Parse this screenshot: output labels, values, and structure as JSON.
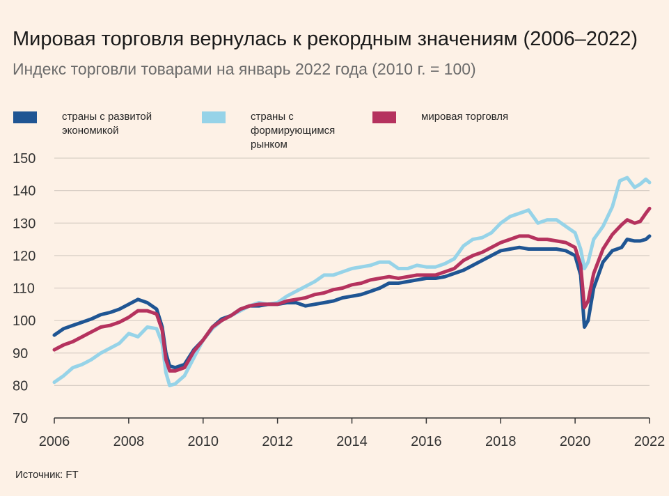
{
  "title": "Мировая торговля вернулась к рекордным значениям (2006–2022)",
  "subtitle": "Индекс торговли товарами на январь 2022 года  (2010 г. = 100)",
  "source": "Источник: FT",
  "legend": [
    {
      "label": "страны с развитой экономикой",
      "color": "#1F5593"
    },
    {
      "label": "страны с формирующимся рынком",
      "color": "#96D3E8"
    },
    {
      "label": "мировая торговля",
      "color": "#B5325E"
    }
  ],
  "chart_data": {
    "type": "line",
    "title": "Мировая торговля вернулась к рекордным значениям (2006–2022)",
    "subtitle": "Индекс торговли товарами на январь 2022 года  (2010 г. = 100)",
    "xlim": [
      2006,
      2022
    ],
    "ylim": [
      70,
      150
    ],
    "x_ticks": [
      "2006",
      "2008",
      "2010",
      "2012",
      "2014",
      "2016",
      "2018",
      "2020",
      "2022"
    ],
    "y_ticks": [
      "70",
      "80",
      "90",
      "100",
      "110",
      "120",
      "130",
      "140",
      "150"
    ],
    "grid": "horizontal",
    "legend_position": "top",
    "series": [
      {
        "name": "страны с развитой экономикой",
        "color": "#1F5593",
        "points": [
          [
            2006.0,
            95.5
          ],
          [
            2006.25,
            97.5
          ],
          [
            2006.5,
            98.5
          ],
          [
            2006.75,
            99.5
          ],
          [
            2007.0,
            100.5
          ],
          [
            2007.25,
            101.8
          ],
          [
            2007.5,
            102.5
          ],
          [
            2007.75,
            103.5
          ],
          [
            2008.0,
            105.0
          ],
          [
            2008.25,
            106.5
          ],
          [
            2008.5,
            105.5
          ],
          [
            2008.75,
            103.5
          ],
          [
            2008.9,
            98.0
          ],
          [
            2009.0,
            90.0
          ],
          [
            2009.1,
            86.0
          ],
          [
            2009.25,
            85.5
          ],
          [
            2009.5,
            86.5
          ],
          [
            2009.75,
            91.0
          ],
          [
            2010.0,
            94.0
          ],
          [
            2010.25,
            98.0
          ],
          [
            2010.5,
            100.5
          ],
          [
            2010.75,
            101.5
          ],
          [
            2011.0,
            103.5
          ],
          [
            2011.25,
            104.5
          ],
          [
            2011.5,
            104.5
          ],
          [
            2011.75,
            105.0
          ],
          [
            2012.0,
            105.0
          ],
          [
            2012.25,
            105.5
          ],
          [
            2012.5,
            105.5
          ],
          [
            2012.75,
            104.5
          ],
          [
            2013.0,
            105.0
          ],
          [
            2013.25,
            105.5
          ],
          [
            2013.5,
            106.0
          ],
          [
            2013.75,
            107.0
          ],
          [
            2014.0,
            107.5
          ],
          [
            2014.25,
            108.0
          ],
          [
            2014.5,
            109.0
          ],
          [
            2014.75,
            110.0
          ],
          [
            2015.0,
            111.5
          ],
          [
            2015.25,
            111.5
          ],
          [
            2015.5,
            112.0
          ],
          [
            2015.75,
            112.5
          ],
          [
            2016.0,
            113.0
          ],
          [
            2016.25,
            113.0
          ],
          [
            2016.5,
            113.5
          ],
          [
            2016.75,
            114.5
          ],
          [
            2017.0,
            115.5
          ],
          [
            2017.25,
            117.0
          ],
          [
            2017.5,
            118.5
          ],
          [
            2017.75,
            120.0
          ],
          [
            2018.0,
            121.5
          ],
          [
            2018.25,
            122.0
          ],
          [
            2018.5,
            122.5
          ],
          [
            2018.75,
            122.0
          ],
          [
            2019.0,
            122.0
          ],
          [
            2019.25,
            122.0
          ],
          [
            2019.5,
            122.0
          ],
          [
            2019.75,
            121.5
          ],
          [
            2020.0,
            120.0
          ],
          [
            2020.15,
            114.0
          ],
          [
            2020.25,
            98.0
          ],
          [
            2020.35,
            100.0
          ],
          [
            2020.5,
            110.0
          ],
          [
            2020.75,
            118.0
          ],
          [
            2021.0,
            121.5
          ],
          [
            2021.25,
            122.5
          ],
          [
            2021.4,
            125.0
          ],
          [
            2021.6,
            124.5
          ],
          [
            2021.75,
            124.5
          ],
          [
            2021.9,
            125.0
          ],
          [
            2022.0,
            126.0
          ]
        ]
      },
      {
        "name": "страны с формирующимся рынком",
        "color": "#96D3E8",
        "points": [
          [
            2006.0,
            81.0
          ],
          [
            2006.25,
            83.0
          ],
          [
            2006.5,
            85.5
          ],
          [
            2006.75,
            86.5
          ],
          [
            2007.0,
            88.0
          ],
          [
            2007.25,
            90.0
          ],
          [
            2007.5,
            91.5
          ],
          [
            2007.75,
            93.0
          ],
          [
            2008.0,
            96.0
          ],
          [
            2008.25,
            95.0
          ],
          [
            2008.5,
            98.0
          ],
          [
            2008.75,
            97.5
          ],
          [
            2008.9,
            93.0
          ],
          [
            2009.0,
            84.0
          ],
          [
            2009.1,
            80.0
          ],
          [
            2009.25,
            80.5
          ],
          [
            2009.5,
            83.0
          ],
          [
            2009.75,
            88.5
          ],
          [
            2010.0,
            94.0
          ],
          [
            2010.25,
            97.5
          ],
          [
            2010.5,
            100.0
          ],
          [
            2010.75,
            101.5
          ],
          [
            2011.0,
            103.0
          ],
          [
            2011.25,
            104.5
          ],
          [
            2011.5,
            105.5
          ],
          [
            2011.75,
            105.0
          ],
          [
            2012.0,
            105.5
          ],
          [
            2012.25,
            107.5
          ],
          [
            2012.5,
            109.0
          ],
          [
            2012.75,
            110.5
          ],
          [
            2013.0,
            112.0
          ],
          [
            2013.25,
            114.0
          ],
          [
            2013.5,
            114.0
          ],
          [
            2013.75,
            115.0
          ],
          [
            2014.0,
            116.0
          ],
          [
            2014.25,
            116.5
          ],
          [
            2014.5,
            117.0
          ],
          [
            2014.75,
            118.0
          ],
          [
            2015.0,
            118.0
          ],
          [
            2015.25,
            116.0
          ],
          [
            2015.5,
            116.0
          ],
          [
            2015.75,
            117.0
          ],
          [
            2016.0,
            116.5
          ],
          [
            2016.25,
            116.5
          ],
          [
            2016.5,
            117.5
          ],
          [
            2016.75,
            119.0
          ],
          [
            2017.0,
            123.0
          ],
          [
            2017.25,
            125.0
          ],
          [
            2017.5,
            125.5
          ],
          [
            2017.75,
            127.0
          ],
          [
            2018.0,
            130.0
          ],
          [
            2018.25,
            132.0
          ],
          [
            2018.5,
            133.0
          ],
          [
            2018.75,
            134.0
          ],
          [
            2019.0,
            130.0
          ],
          [
            2019.25,
            131.0
          ],
          [
            2019.5,
            131.0
          ],
          [
            2019.75,
            129.0
          ],
          [
            2020.0,
            127.0
          ],
          [
            2020.15,
            122.0
          ],
          [
            2020.25,
            116.0
          ],
          [
            2020.35,
            118.0
          ],
          [
            2020.5,
            125.0
          ],
          [
            2020.75,
            129.0
          ],
          [
            2021.0,
            135.0
          ],
          [
            2021.2,
            143.0
          ],
          [
            2021.4,
            144.0
          ],
          [
            2021.6,
            141.0
          ],
          [
            2021.75,
            142.0
          ],
          [
            2021.9,
            143.5
          ],
          [
            2022.0,
            142.5
          ]
        ]
      },
      {
        "name": "мировая торговля",
        "color": "#B5325E",
        "points": [
          [
            2006.0,
            91.0
          ],
          [
            2006.25,
            92.5
          ],
          [
            2006.5,
            93.5
          ],
          [
            2006.75,
            95.0
          ],
          [
            2007.0,
            96.5
          ],
          [
            2007.25,
            98.0
          ],
          [
            2007.5,
            98.5
          ],
          [
            2007.75,
            99.5
          ],
          [
            2008.0,
            101.0
          ],
          [
            2008.25,
            103.0
          ],
          [
            2008.5,
            103.0
          ],
          [
            2008.75,
            102.0
          ],
          [
            2008.9,
            97.0
          ],
          [
            2009.0,
            88.0
          ],
          [
            2009.1,
            84.5
          ],
          [
            2009.25,
            84.5
          ],
          [
            2009.5,
            85.5
          ],
          [
            2009.75,
            90.5
          ],
          [
            2010.0,
            94.0
          ],
          [
            2010.25,
            98.0
          ],
          [
            2010.5,
            100.0
          ],
          [
            2010.75,
            101.5
          ],
          [
            2011.0,
            103.5
          ],
          [
            2011.25,
            104.5
          ],
          [
            2011.5,
            105.0
          ],
          [
            2011.75,
            105.0
          ],
          [
            2012.0,
            105.0
          ],
          [
            2012.25,
            106.0
          ],
          [
            2012.5,
            106.5
          ],
          [
            2012.75,
            107.0
          ],
          [
            2013.0,
            108.0
          ],
          [
            2013.25,
            108.5
          ],
          [
            2013.5,
            109.5
          ],
          [
            2013.75,
            110.0
          ],
          [
            2014.0,
            111.0
          ],
          [
            2014.25,
            111.5
          ],
          [
            2014.5,
            112.5
          ],
          [
            2014.75,
            113.0
          ],
          [
            2015.0,
            113.5
          ],
          [
            2015.25,
            113.0
          ],
          [
            2015.5,
            113.5
          ],
          [
            2015.75,
            114.0
          ],
          [
            2016.0,
            114.0
          ],
          [
            2016.25,
            114.0
          ],
          [
            2016.5,
            115.0
          ],
          [
            2016.75,
            116.0
          ],
          [
            2017.0,
            118.5
          ],
          [
            2017.25,
            120.0
          ],
          [
            2017.5,
            121.0
          ],
          [
            2017.75,
            122.5
          ],
          [
            2018.0,
            124.0
          ],
          [
            2018.25,
            125.0
          ],
          [
            2018.5,
            126.0
          ],
          [
            2018.75,
            126.0
          ],
          [
            2019.0,
            125.0
          ],
          [
            2019.25,
            125.0
          ],
          [
            2019.5,
            124.5
          ],
          [
            2019.75,
            124.0
          ],
          [
            2020.0,
            122.5
          ],
          [
            2020.15,
            117.0
          ],
          [
            2020.25,
            104.0
          ],
          [
            2020.35,
            106.0
          ],
          [
            2020.5,
            114.5
          ],
          [
            2020.75,
            122.0
          ],
          [
            2021.0,
            126.5
          ],
          [
            2021.25,
            129.5
          ],
          [
            2021.4,
            131.0
          ],
          [
            2021.6,
            130.0
          ],
          [
            2021.75,
            130.5
          ],
          [
            2021.9,
            133.0
          ],
          [
            2022.0,
            134.5
          ]
        ]
      }
    ]
  }
}
